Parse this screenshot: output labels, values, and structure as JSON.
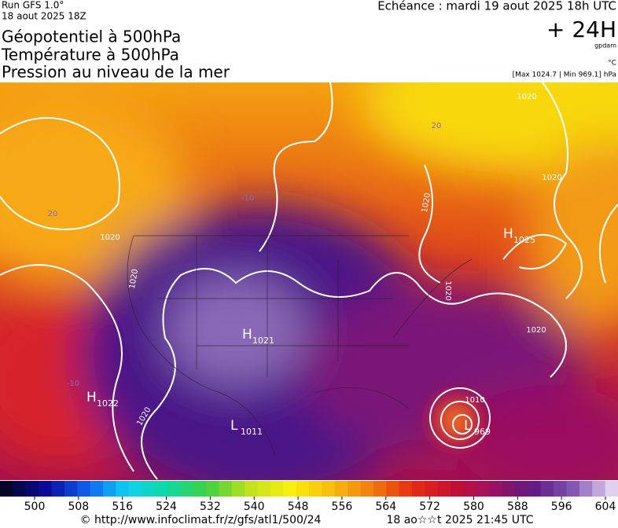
{
  "header": {
    "run": "Run GFS 1.0°",
    "init": "18 aout 2025 18Z",
    "titles": [
      "Géopotentiel à 500hPa",
      "Température à 500hPa",
      "Pression au niveau de la mer"
    ],
    "valid": "Echéance : mardi 19 aout 2025 18h UTC",
    "lead": "+ 24H",
    "units": [
      "gpdam",
      "°C"
    ],
    "extremes": "[Max 1024.7 | Min 969.1] hPa"
  },
  "map": {
    "centers": [
      {
        "letter": "H",
        "value": "1025"
      },
      {
        "letter": "H",
        "value": "1021"
      },
      {
        "letter": "H",
        "value": "1022"
      },
      {
        "letter": "L",
        "value": "1011"
      },
      {
        "letter": "L",
        "value": "969"
      }
    ],
    "isobar_labels": [
      "1020",
      "1020",
      "1020",
      "1020",
      "1020",
      "1020",
      "1020",
      "1010",
      "1020"
    ],
    "temperature_labels": [
      "-10",
      "-10",
      "20",
      "20"
    ]
  },
  "colorbar": {
    "ticks": [
      500,
      508,
      516,
      524,
      532,
      540,
      548,
      556,
      564,
      572,
      580,
      588,
      596,
      604
    ]
  },
  "footer": {
    "source": "© http://www.infoclimat.fr/z/gfs/atl1/500/24",
    "generated": "18 ao☆☆t 2025 21:45 UTC"
  }
}
